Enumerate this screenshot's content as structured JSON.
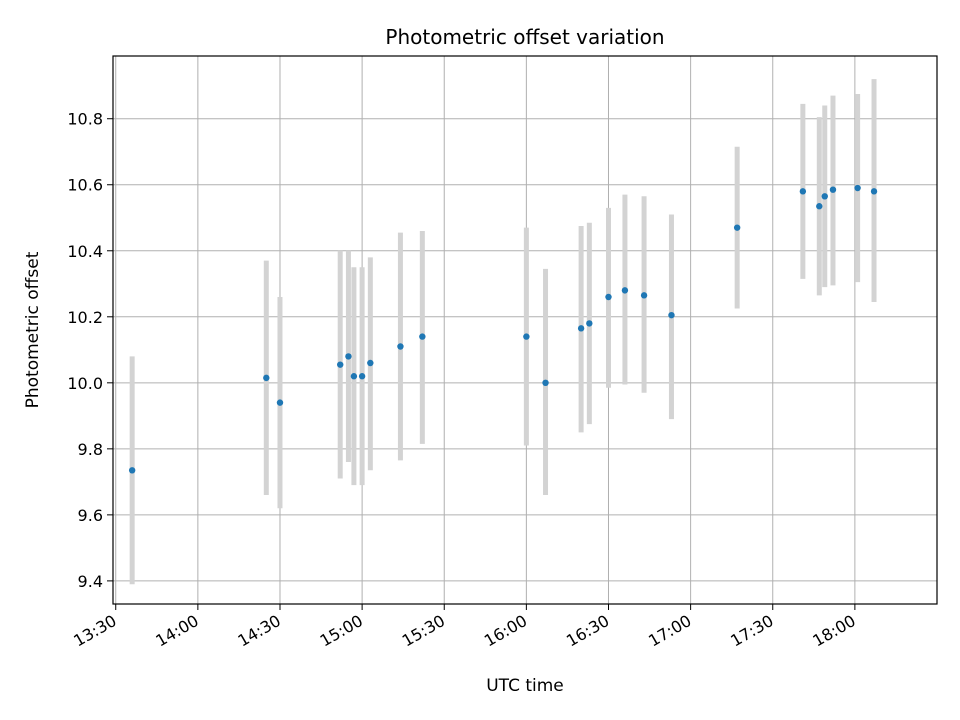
{
  "chart_data": {
    "type": "scatter",
    "title": "Photometric offset variation",
    "xlabel": "UTC time",
    "ylabel": "Photometric offset",
    "x_tick_labels": [
      "13:30",
      "14:00",
      "14:30",
      "15:00",
      "15:30",
      "16:00",
      "16:30",
      "17:00",
      "17:30",
      "18:00"
    ],
    "y_tick_labels": [
      "9.4",
      "9.6",
      "9.8",
      "10.0",
      "10.2",
      "10.4",
      "10.6",
      "10.8"
    ],
    "xlim": [
      "13:29",
      "18:30"
    ],
    "ylim": [
      9.33,
      10.99
    ],
    "grid": true,
    "marker_color": "#1f77b4",
    "errorbar_color": "#d3d3d3",
    "points": [
      {
        "x": "13:36",
        "y": 9.735,
        "low": 9.39,
        "high": 10.08
      },
      {
        "x": "14:25",
        "y": 10.015,
        "low": 9.66,
        "high": 10.37
      },
      {
        "x": "14:30",
        "y": 9.94,
        "low": 9.62,
        "high": 10.26
      },
      {
        "x": "14:52",
        "y": 10.055,
        "low": 9.71,
        "high": 10.4
      },
      {
        "x": "14:55",
        "y": 10.08,
        "low": 9.76,
        "high": 10.4
      },
      {
        "x": "14:57",
        "y": 10.02,
        "low": 9.69,
        "high": 10.35
      },
      {
        "x": "15:00",
        "y": 10.02,
        "low": 9.69,
        "high": 10.35
      },
      {
        "x": "15:03",
        "y": 10.06,
        "low": 9.735,
        "high": 10.38
      },
      {
        "x": "15:14",
        "y": 10.11,
        "low": 9.765,
        "high": 10.455
      },
      {
        "x": "15:22",
        "y": 10.14,
        "low": 9.815,
        "high": 10.46
      },
      {
        "x": "16:00",
        "y": 10.14,
        "low": 9.81,
        "high": 10.47
      },
      {
        "x": "16:07",
        "y": 10.0,
        "low": 9.66,
        "high": 10.345
      },
      {
        "x": "16:20",
        "y": 10.165,
        "low": 9.85,
        "high": 10.475
      },
      {
        "x": "16:23",
        "y": 10.18,
        "low": 9.875,
        "high": 10.485
      },
      {
        "x": "16:30",
        "y": 10.26,
        "low": 9.985,
        "high": 10.53
      },
      {
        "x": "16:36",
        "y": 10.28,
        "low": 9.995,
        "high": 10.57
      },
      {
        "x": "16:43",
        "y": 10.265,
        "low": 9.97,
        "high": 10.565
      },
      {
        "x": "16:53",
        "y": 10.205,
        "low": 9.89,
        "high": 10.51
      },
      {
        "x": "17:17",
        "y": 10.47,
        "low": 10.225,
        "high": 10.715
      },
      {
        "x": "17:41",
        "y": 10.58,
        "low": 10.315,
        "high": 10.845
      },
      {
        "x": "17:47",
        "y": 10.535,
        "low": 10.265,
        "high": 10.805
      },
      {
        "x": "17:49",
        "y": 10.565,
        "low": 10.29,
        "high": 10.84
      },
      {
        "x": "17:52",
        "y": 10.585,
        "low": 10.295,
        "high": 10.87
      },
      {
        "x": "18:01",
        "y": 10.59,
        "low": 10.305,
        "high": 10.875
      },
      {
        "x": "18:07",
        "y": 10.58,
        "low": 10.245,
        "high": 10.92
      }
    ]
  }
}
